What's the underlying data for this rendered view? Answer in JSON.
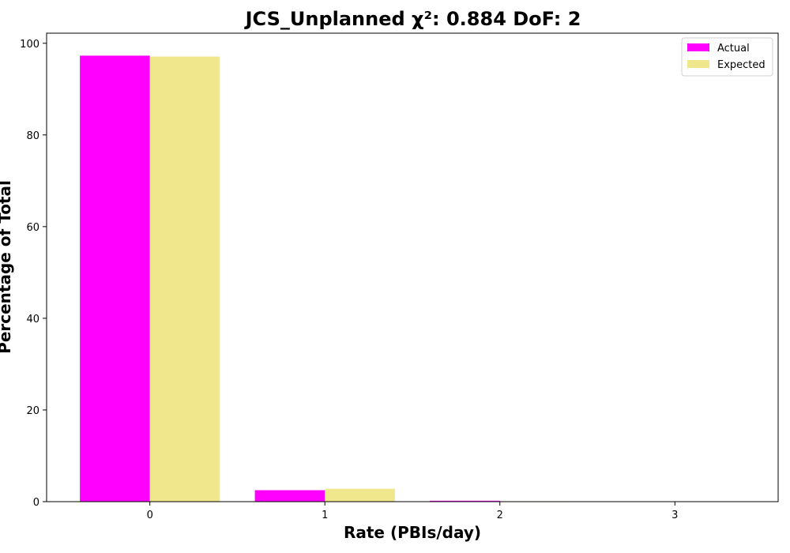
{
  "chart_data": {
    "type": "bar",
    "title": "JCS_Unplanned χ²: 0.884 DoF: 2",
    "xlabel": "Rate (PBIs/day)",
    "ylabel": "Percentage of Total",
    "categories": [
      "0",
      "1",
      "2",
      "3"
    ],
    "x": [
      0,
      1,
      2,
      3
    ],
    "xlim": [
      -0.59,
      3.59
    ],
    "ylim": [
      0,
      102.2
    ],
    "yticks": [
      0,
      20,
      40,
      60,
      80,
      100
    ],
    "grid": false,
    "legend_position": "top-right",
    "series": [
      {
        "name": "Actual",
        "color": "#ff00ff",
        "values": [
          97.3,
          2.5,
          0.2,
          0.0
        ]
      },
      {
        "name": "Expected",
        "color": "#f0e68c",
        "values": [
          97.1,
          2.8,
          0.1,
          0.0
        ]
      }
    ]
  }
}
